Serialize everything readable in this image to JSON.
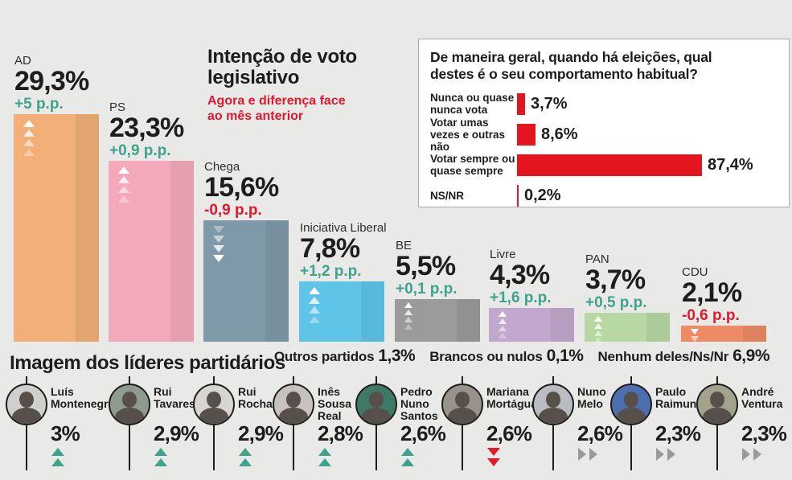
{
  "colors": {
    "background": "#e9e9e8",
    "positive": "#3fa28c",
    "negative": "#e2182d",
    "survey_bar": "#e5151f",
    "text": "#1d1d1b"
  },
  "chart_data": [
    {
      "id": "vote_intention",
      "type": "bar",
      "title": "Intenção de voto legislativo",
      "subtitle": "Agora e diferença face ao mês anterior",
      "categories": [
        "AD",
        "PS",
        "Chega",
        "Iniciativa Liberal",
        "BE",
        "Livre",
        "PAN",
        "CDU"
      ],
      "values": [
        29.3,
        23.3,
        15.6,
        7.8,
        5.5,
        4.3,
        3.7,
        2.1
      ],
      "value_labels": [
        "29,3%",
        "23,3%",
        "15,6%",
        "7,8%",
        "5,5%",
        "4,3%",
        "3,7%",
        "2,1%"
      ],
      "change_labels": [
        "+5 p.p.",
        "+0,9 p.p.",
        "-0,9 p.p.",
        "+1,2 p.p.",
        "+0,1 p.p.",
        "+1,6 p.p.",
        "+0,5 p.p.",
        "-0,6 p.p."
      ],
      "change_direction": [
        "up",
        "up",
        "down",
        "up",
        "up",
        "up",
        "up",
        "down"
      ],
      "bar_colors": [
        "#f2b078",
        "#f4a9ba",
        "#7e9aa8",
        "#5ec5e8",
        "#9b9b9b",
        "#c2a8ce",
        "#b7d8a2",
        "#ee8a64"
      ],
      "ylim": [
        0,
        30
      ],
      "footnotes": [
        {
          "label": "Outros partidos",
          "value": "1,3%"
        },
        {
          "label": "Brancos ou nulos",
          "value": "0,1%"
        },
        {
          "label": "Nenhum deles/Ns/Nr",
          "value": "6,9%"
        }
      ]
    },
    {
      "id": "voting_behavior",
      "type": "bar",
      "orientation": "horizontal",
      "title": "De maneira geral, quando há eleições, qual destes é o seu comportamento habitual?",
      "categories": [
        "Nunca ou quase nunca vota",
        "Votar umas vezes e outras não",
        "Votar sempre ou quase sempre",
        "NS/NR"
      ],
      "values": [
        3.7,
        8.6,
        87.4,
        0.2
      ],
      "value_labels": [
        "3,7%",
        "8,6%",
        "87,4%",
        "0,2%"
      ],
      "xlim": [
        0,
        100
      ]
    },
    {
      "id": "leader_image",
      "type": "bar",
      "title": "Imagem dos líderes partidários",
      "categories": [
        "Luís Montenegro",
        "Rui Tavares",
        "Rui Rocha",
        "Inês Sousa Real",
        "Pedro Nuno Santos",
        "Mariana Mortágua",
        "Nuno Melo",
        "Paulo Raimundo",
        "André Ventura"
      ],
      "name_lines": [
        [
          "Luís",
          "Montenegro"
        ],
        [
          "Rui",
          "Tavares"
        ],
        [
          "Rui",
          "Rocha"
        ],
        [
          "Inês",
          "Sousa",
          "Real"
        ],
        [
          "Pedro",
          "Nuno",
          "Santos"
        ],
        [
          "Mariana",
          "Mortágua"
        ],
        [
          "Nuno",
          "Melo"
        ],
        [
          "Paulo",
          "Raimundo"
        ],
        [
          "André",
          "Ventura"
        ]
      ],
      "values": [
        3,
        2.9,
        2.9,
        2.8,
        2.6,
        2.6,
        2.6,
        2.3,
        2.3
      ],
      "value_labels": [
        "3%",
        "2,9%",
        "2,9%",
        "2,8%",
        "2,6%",
        "2,6%",
        "2,6%",
        "2,3%",
        "2,3%"
      ],
      "trends": [
        "up",
        "up",
        "up",
        "up",
        "up",
        "down",
        "steady",
        "steady",
        "steady"
      ],
      "photo_colors": [
        "#cfd0cd",
        "#8f9b8f",
        "#d6d5d2",
        "#c7c2bd",
        "#3c7a67",
        "#99928b",
        "#b9bcc0",
        "#4d6faf",
        "#a3a38d"
      ]
    }
  ]
}
